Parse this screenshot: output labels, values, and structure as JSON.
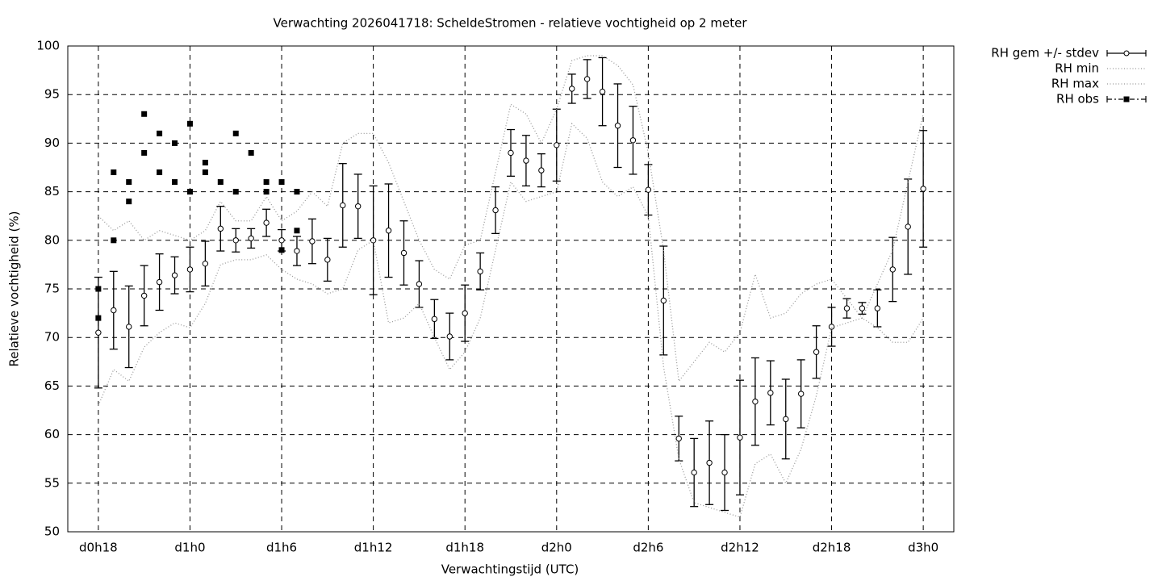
{
  "chart_data": {
    "type": "line",
    "title": "Verwachting 2026041718: ScheldeStromen - relatieve vochtigheid op 2 meter",
    "xlabel": "Verwachtingstijd (UTC)",
    "ylabel": "Relatieve vochtigheid (%)",
    "x": [
      18,
      19,
      20,
      21,
      22,
      23,
      24,
      25,
      26,
      27,
      28,
      29,
      30,
      31,
      32,
      33,
      34,
      35,
      36,
      37,
      38,
      39,
      40,
      41,
      42,
      43,
      44,
      45,
      46,
      47,
      48,
      49,
      50,
      51,
      52,
      53,
      54,
      55,
      56,
      57,
      58,
      59,
      60,
      61,
      62,
      63,
      64,
      65,
      66,
      67,
      68,
      69,
      70,
      71,
      72
    ],
    "xlim": [
      16,
      74
    ],
    "xticks": [
      {
        "value": 18,
        "label": "d0h18"
      },
      {
        "value": 24,
        "label": "d1h0"
      },
      {
        "value": 30,
        "label": "d1h6"
      },
      {
        "value": 36,
        "label": "d1h12"
      },
      {
        "value": 42,
        "label": "d1h18"
      },
      {
        "value": 48,
        "label": "d2h0"
      },
      {
        "value": 54,
        "label": "d2h6"
      },
      {
        "value": 60,
        "label": "d2h12"
      },
      {
        "value": 66,
        "label": "d2h18"
      },
      {
        "value": 72,
        "label": "d3h0"
      }
    ],
    "ylim": [
      50,
      100
    ],
    "yticks": [
      50,
      55,
      60,
      65,
      70,
      75,
      80,
      85,
      90,
      95,
      100
    ],
    "grid": true,
    "legend": "outside-top-right",
    "series": [
      {
        "name": "RH gem +/- stdev",
        "color": "#000000",
        "style": "errorbars",
        "values": [
          70.5,
          72.8,
          71.1,
          74.3,
          75.7,
          76.4,
          77.0,
          77.6,
          81.2,
          80.0,
          80.2,
          81.8,
          80.0,
          78.9,
          79.9,
          78.0,
          83.6,
          83.5,
          80.0,
          81.0,
          78.7,
          75.5,
          71.9,
          70.1,
          72.5,
          76.8,
          83.1,
          89.0,
          88.2,
          87.2,
          89.8,
          95.6,
          96.6,
          95.3,
          91.8,
          90.3,
          85.2,
          73.8,
          59.6,
          56.1,
          57.1,
          56.1,
          59.7,
          63.4,
          64.3,
          61.6,
          64.2,
          68.5,
          71.1,
          73.0,
          73.0,
          73.0,
          77.0,
          81.4,
          85.3
        ],
        "errors": [
          5.7,
          4.0,
          4.2,
          3.1,
          2.9,
          1.9,
          2.3,
          2.3,
          2.3,
          1.2,
          1.0,
          1.4,
          1.1,
          1.5,
          2.3,
          2.2,
          4.3,
          3.3,
          5.6,
          4.8,
          3.3,
          2.4,
          2.0,
          2.4,
          2.9,
          1.9,
          2.4,
          2.4,
          2.6,
          1.7,
          3.7,
          1.5,
          2.0,
          3.5,
          4.3,
          3.5,
          2.6,
          5.6,
          2.3,
          3.5,
          4.3,
          3.9,
          5.9,
          4.5,
          3.3,
          4.1,
          3.5,
          2.7,
          2.0,
          1.0,
          0.6,
          1.9,
          3.3,
          4.9,
          6.0
        ]
      },
      {
        "name": "RH min",
        "color": "#999999",
        "style": "dotted",
        "values": [
          63,
          66.7,
          65.5,
          69,
          70.5,
          71.5,
          71,
          73.5,
          77.5,
          78,
          78,
          78.5,
          77,
          76,
          75.5,
          74.5,
          75,
          79,
          80,
          71.5,
          72,
          73.5,
          70,
          66.7,
          68.5,
          72,
          79,
          86,
          84,
          84.5,
          85,
          92,
          90.5,
          86,
          84.5,
          85.5,
          82.5,
          67,
          57.5,
          53,
          52.5,
          52,
          51.5,
          57,
          58,
          55,
          58.5,
          64,
          71,
          71.5,
          72,
          71,
          69.5,
          69.5,
          72
        ]
      },
      {
        "name": "RH max",
        "color": "#999999",
        "style": "dotted",
        "values": [
          82.5,
          81,
          82,
          80,
          81,
          80.5,
          80,
          81,
          84,
          82,
          82,
          84.5,
          82,
          83,
          85,
          83.5,
          90,
          91,
          91,
          88,
          84,
          80,
          77,
          76,
          79.5,
          80,
          87,
          94,
          93,
          90,
          93.5,
          98.5,
          99,
          99,
          98,
          96,
          89,
          79,
          65.5,
          67.5,
          69.5,
          68.5,
          70.5,
          76.5,
          72,
          72.5,
          74.5,
          75.5,
          76,
          74,
          72,
          75.5,
          79,
          86,
          93
        ]
      },
      {
        "name": "RH obs",
        "color": "#000000",
        "style": "points",
        "x": [
          18,
          18,
          19,
          19,
          20,
          20,
          21,
          21,
          22,
          22,
          23,
          23,
          24,
          24,
          25,
          25,
          26,
          27,
          27,
          28,
          29,
          29,
          30,
          30,
          31,
          31
        ],
        "values": [
          75,
          72,
          87,
          80,
          86,
          84,
          93,
          89,
          91,
          87,
          90,
          86,
          92,
          85,
          88,
          87,
          86,
          91,
          85,
          89,
          86,
          85,
          86,
          79,
          85,
          81
        ]
      }
    ]
  }
}
